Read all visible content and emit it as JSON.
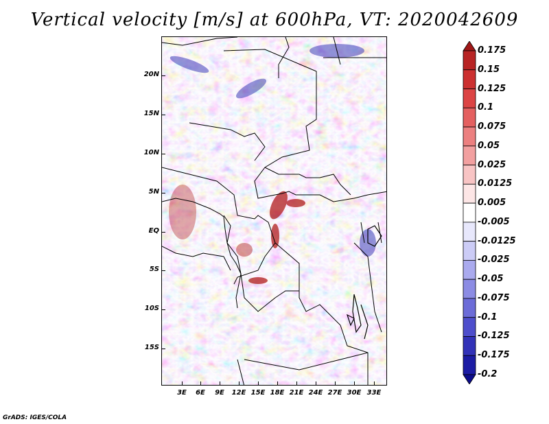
{
  "title": "Vertical velocity [m/s] at 600hPa, VT: 2020042609",
  "map": {
    "latitude_labels": [
      "20N",
      "15N",
      "10N",
      "5N",
      "EQ",
      "5S",
      "10S",
      "15S"
    ],
    "longitude_labels": [
      "3E",
      "6E",
      "9E",
      "12E",
      "15E",
      "18E",
      "21E",
      "24E",
      "27E",
      "30E",
      "33E"
    ]
  },
  "colorbar": {
    "labels": [
      "0.175",
      "0.15",
      "0.125",
      "0.1",
      "0.075",
      "0.05",
      "0.025",
      "0.0125",
      "0.005",
      "-0.005",
      "-0.0125",
      "-0.025",
      "-0.05",
      "-0.075",
      "-0.1",
      "-0.125",
      "-0.175",
      "-0.2"
    ],
    "colors": [
      "#a01818",
      "#b82424",
      "#cc3030",
      "#dc4444",
      "#e46060",
      "#ec8080",
      "#f2a0a0",
      "#f8c4c4",
      "#fde6e6",
      "#ffffff",
      "#e8e8fc",
      "#ccccf6",
      "#aaaaee",
      "#8c8ce4",
      "#6c6cd8",
      "#4e4ecc",
      "#3232b8",
      "#1c1ca4",
      "#0c0c8c"
    ]
  },
  "credit": "GrADS: IGES/COLA"
}
